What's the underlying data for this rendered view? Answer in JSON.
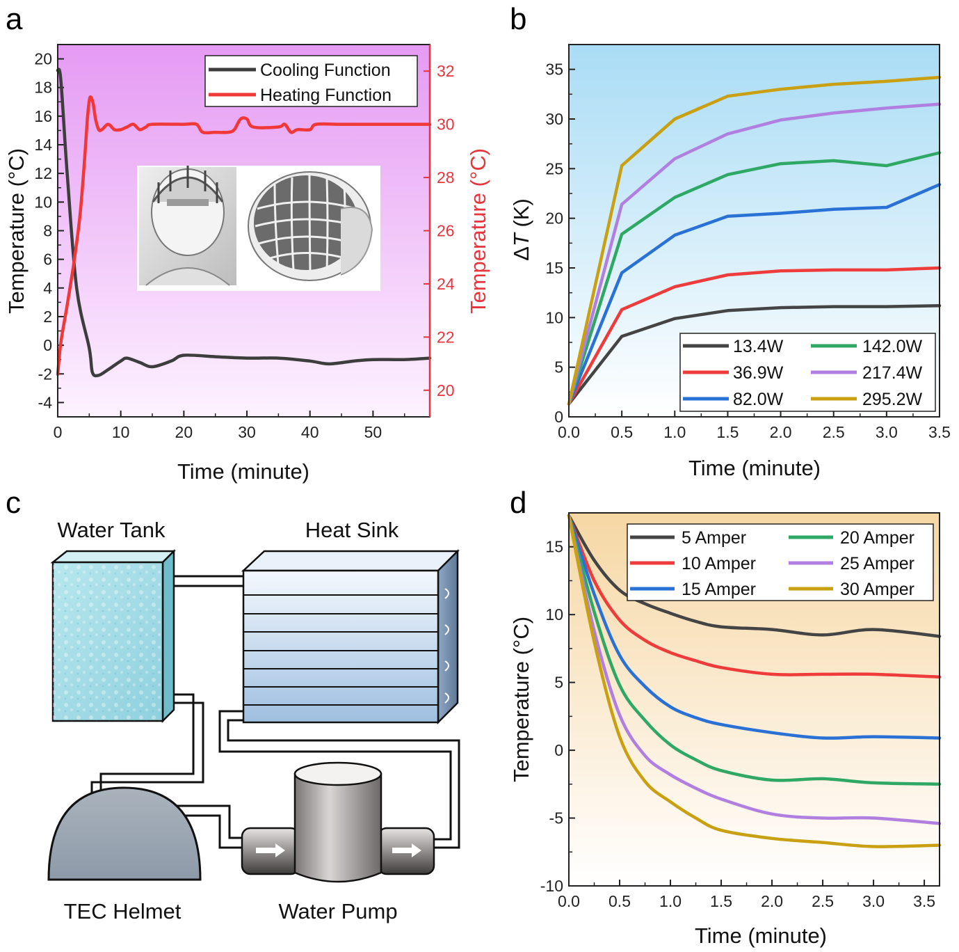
{
  "chart_data": [
    {
      "panel": "a",
      "type": "line",
      "xlabel": "Time (minute)",
      "ylabel": "Temperature (°C)",
      "y2label": "Temperature (°C)",
      "xlim": [
        0,
        59
      ],
      "ylim": [
        -5,
        21
      ],
      "y2lim": [
        19,
        33
      ],
      "xticks": [
        0,
        10,
        20,
        30,
        40,
        50
      ],
      "yticks": [
        -4,
        -2,
        0,
        2,
        4,
        6,
        8,
        10,
        12,
        14,
        16,
        18,
        20
      ],
      "y2ticks": [
        20,
        22,
        24,
        26,
        28,
        30,
        32
      ],
      "legend_position": "top-right",
      "colors": {
        "background_top": "#e59af3",
        "background_bottom": "#fdf2ff",
        "right_axis": "#e8343d"
      },
      "series": [
        {
          "name": "Cooling Function",
          "axis": "left",
          "color": "#3d3d3d",
          "x": [
            0,
            0.5,
            1.5,
            3,
            5,
            5.5,
            6.5,
            8,
            10,
            11,
            13,
            15,
            18,
            20,
            25,
            30,
            35,
            40,
            43,
            47,
            50,
            55,
            59
          ],
          "y": [
            19.2,
            18.5,
            12,
            4,
            -0.2,
            -1.9,
            -2.1,
            -1.7,
            -1.1,
            -0.9,
            -1.2,
            -1.5,
            -1.1,
            -0.7,
            -0.8,
            -0.9,
            -0.9,
            -1.1,
            -1.3,
            -1.1,
            -1.0,
            -1.0,
            -0.9
          ]
        },
        {
          "name": "Heating Function",
          "axis": "right",
          "color": "#f03838",
          "x": [
            0,
            0.5,
            1.5,
            2.5,
            3.5,
            4.2,
            4.7,
            5.1,
            5.6,
            6,
            6.5,
            7,
            8,
            9,
            10,
            11,
            12,
            13,
            14,
            15,
            20,
            22,
            23,
            25,
            27,
            28,
            29,
            30,
            31,
            35,
            36,
            37,
            38,
            40,
            41,
            45,
            50,
            59
          ],
          "y": [
            20.6,
            21.8,
            23.2,
            24.7,
            26.5,
            28.5,
            30.2,
            31,
            30.8,
            30.2,
            29.8,
            29.8,
            30,
            29.8,
            29.8,
            29.9,
            30,
            29.8,
            29.9,
            30,
            30,
            30,
            29.7,
            29.7,
            29.7,
            29.8,
            30.2,
            30.2,
            29.9,
            29.9,
            30,
            29.7,
            29.8,
            29.8,
            30,
            30,
            30,
            30
          ]
        }
      ]
    },
    {
      "panel": "b",
      "type": "line",
      "xlabel": "Time (minute)",
      "ylabel_prefix": "Δ",
      "ylabel_var": "T",
      "ylabel_unit": " (K)",
      "xlim": [
        0,
        3.5
      ],
      "ylim": [
        0,
        37.5
      ],
      "xticks": [
        0.0,
        0.5,
        1.0,
        1.5,
        2.0,
        2.5,
        3.0,
        3.5
      ],
      "yticks": [
        0,
        5,
        10,
        15,
        20,
        25,
        30,
        35
      ],
      "legend_position": "bottom-right",
      "colors": {
        "background_top": "#a9dcf5",
        "background_bottom": "#ffffff"
      },
      "series": [
        {
          "name": "13.4W",
          "color": "#444444",
          "x": [
            0,
            0.5,
            1.0,
            1.5,
            2.0,
            2.5,
            3.0,
            3.5
          ],
          "y": [
            1.3,
            8.1,
            9.9,
            10.7,
            11.0,
            11.1,
            11.1,
            11.2
          ]
        },
        {
          "name": "36.9W",
          "color": "#ee3b3b",
          "x": [
            0,
            0.5,
            1.0,
            1.5,
            2.0,
            2.5,
            3.0,
            3.5
          ],
          "y": [
            1.3,
            10.8,
            13.1,
            14.3,
            14.7,
            14.8,
            14.8,
            15.0
          ]
        },
        {
          "name": "82.0W",
          "color": "#2a71d6",
          "x": [
            0,
            0.5,
            1.0,
            1.5,
            2.0,
            2.5,
            3.0,
            3.5
          ],
          "y": [
            1.3,
            14.5,
            18.3,
            20.2,
            20.5,
            20.9,
            21.1,
            23.4
          ]
        },
        {
          "name": "142.0W",
          "color": "#2fa865",
          "x": [
            0,
            0.5,
            1.0,
            1.5,
            2.0,
            2.5,
            3.0,
            3.5
          ],
          "y": [
            1.3,
            18.4,
            22.1,
            24.4,
            25.5,
            25.8,
            25.3,
            26.6
          ]
        },
        {
          "name": "217.4W",
          "color": "#b07fe0",
          "x": [
            0,
            0.5,
            1.0,
            1.5,
            2.0,
            2.5,
            3.0,
            3.5
          ],
          "y": [
            1.3,
            21.4,
            26.0,
            28.5,
            29.9,
            30.6,
            31.1,
            31.5
          ]
        },
        {
          "name": "295.2W",
          "color": "#c9a012",
          "x": [
            0,
            0.5,
            1.0,
            1.5,
            2.0,
            2.5,
            3.0,
            3.5
          ],
          "y": [
            1.3,
            25.3,
            30.0,
            32.3,
            33.0,
            33.5,
            33.8,
            34.2
          ]
        }
      ]
    },
    {
      "panel": "d",
      "type": "line",
      "xlabel": "Time (minute)",
      "ylabel": "Temperature (°C)",
      "xlim": [
        0,
        3.65
      ],
      "ylim": [
        -10,
        17.5
      ],
      "xticks": [
        0.0,
        0.5,
        1.0,
        1.5,
        2.0,
        2.5,
        3.0,
        3.5
      ],
      "yticks": [
        -10,
        -5,
        0,
        5,
        10,
        15
      ],
      "legend_position": "top-right",
      "colors": {
        "background_top": "#f6d7a4",
        "background_bottom": "#ffffff"
      },
      "series": [
        {
          "name": "5 Amper",
          "color": "#444444",
          "x": [
            0,
            0.25,
            0.5,
            0.75,
            1.0,
            1.25,
            1.5,
            2.0,
            2.5,
            3.0,
            3.65
          ],
          "y": [
            17.3,
            14,
            11.8,
            10.8,
            10.1,
            9.5,
            9.1,
            8.9,
            8.5,
            8.9,
            8.4
          ]
        },
        {
          "name": "10 Amper",
          "color": "#ee3b3b",
          "x": [
            0,
            0.25,
            0.5,
            0.75,
            1.0,
            1.25,
            1.5,
            2.0,
            2.5,
            3.0,
            3.65
          ],
          "y": [
            17.3,
            12.5,
            9.6,
            8.1,
            7.2,
            6.6,
            6.1,
            5.6,
            5.6,
            5.6,
            5.4
          ]
        },
        {
          "name": "15 Amper",
          "color": "#2a71d6",
          "x": [
            0,
            0.25,
            0.5,
            0.75,
            1.0,
            1.25,
            1.5,
            2.0,
            2.5,
            3.0,
            3.65
          ],
          "y": [
            17.3,
            11.5,
            7.0,
            4.7,
            3.2,
            2.4,
            1.9,
            1.3,
            0.9,
            1.0,
            0.9
          ]
        },
        {
          "name": "20 Amper",
          "color": "#2fa865",
          "x": [
            0,
            0.25,
            0.5,
            0.75,
            1.0,
            1.25,
            1.5,
            2.0,
            2.5,
            3.0,
            3.65
          ],
          "y": [
            17.3,
            10.2,
            4.8,
            2.2,
            0.4,
            -0.7,
            -1.5,
            -2.2,
            -2.1,
            -2.4,
            -2.5
          ]
        },
        {
          "name": "25 Amper",
          "color": "#b07fe0",
          "x": [
            0,
            0.25,
            0.5,
            0.75,
            1.0,
            1.25,
            1.5,
            2.0,
            2.5,
            3.0,
            3.65
          ],
          "y": [
            17.3,
            8.8,
            2.6,
            -0.4,
            -1.8,
            -2.8,
            -3.6,
            -4.7,
            -5.0,
            -5.0,
            -5.4
          ]
        },
        {
          "name": "30 Amper",
          "color": "#c9a012",
          "x": [
            0,
            0.25,
            0.5,
            0.75,
            1.0,
            1.25,
            1.5,
            2.0,
            2.5,
            3.0,
            3.65
          ],
          "y": [
            17.3,
            8.0,
            1.0,
            -2.3,
            -3.8,
            -5.0,
            -5.9,
            -6.5,
            -6.8,
            -7.1,
            -7.0
          ]
        }
      ]
    }
  ],
  "panels": {
    "a": {
      "letter": "a"
    },
    "b": {
      "letter": "b"
    },
    "c": {
      "letter": "c"
    },
    "d": {
      "letter": "d"
    }
  },
  "diagram": {
    "water_tank": "Water Tank",
    "heat_sink": "Heat Sink",
    "tec_helmet": "TEC Helmet",
    "water_pump": "Water Pump"
  }
}
